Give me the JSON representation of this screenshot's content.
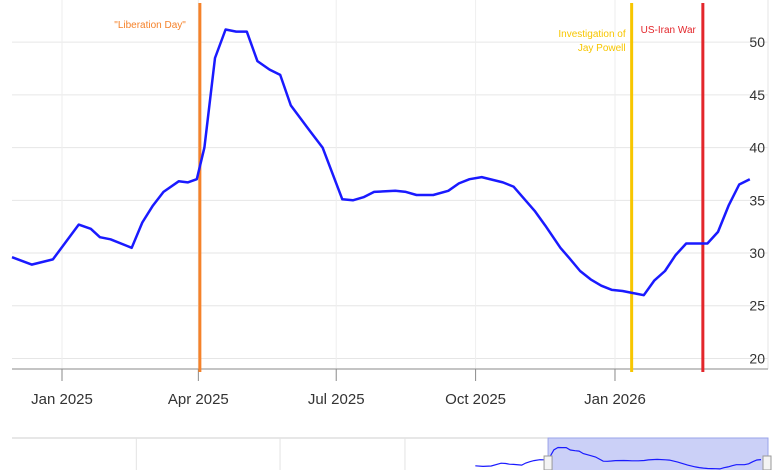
{
  "chart_data": {
    "type": "line",
    "title": "",
    "xlabel": "",
    "ylabel": "",
    "xlim": [
      "2024-11-29",
      "2026-04-12"
    ],
    "ylim": [
      19,
      54
    ],
    "y_ticks": [
      20,
      25,
      30,
      35,
      40,
      45,
      50
    ],
    "y_axis_side": "right",
    "x_ticks": [
      {
        "date": "2025-01-01",
        "label": "Jan 2025"
      },
      {
        "date": "2025-04-01",
        "label": "Apr 2025"
      },
      {
        "date": "2025-07-01",
        "label": "Jul 2025"
      },
      {
        "date": "2025-10-01",
        "label": "Oct 2025"
      },
      {
        "date": "2026-01-01",
        "label": "Jan 2026"
      }
    ],
    "grid": true,
    "series": [
      {
        "color": "#1a1aff",
        "points": [
          [
            "2024-11-29",
            29.6
          ],
          [
            "2024-12-12",
            28.9
          ],
          [
            "2024-12-26",
            29.4
          ],
          [
            "2025-01-12",
            32.7
          ],
          [
            "2025-01-20",
            32.3
          ],
          [
            "2025-01-26",
            31.5
          ],
          [
            "2025-02-02",
            31.3
          ],
          [
            "2025-02-16",
            30.5
          ],
          [
            "2025-02-23",
            32.9
          ],
          [
            "2025-03-02",
            34.5
          ],
          [
            "2025-03-09",
            35.8
          ],
          [
            "2025-03-19",
            36.8
          ],
          [
            "2025-03-25",
            36.7
          ],
          [
            "2025-03-31",
            37.0
          ],
          [
            "2025-04-05",
            40.0
          ],
          [
            "2025-04-12",
            48.5
          ],
          [
            "2025-04-19",
            51.2
          ],
          [
            "2025-04-26",
            51.0
          ],
          [
            "2025-05-03",
            51.0
          ],
          [
            "2025-05-10",
            48.2
          ],
          [
            "2025-05-18",
            47.4
          ],
          [
            "2025-05-25",
            46.9
          ],
          [
            "2025-06-01",
            44.0
          ],
          [
            "2025-06-14",
            41.5
          ],
          [
            "2025-06-22",
            40.0
          ],
          [
            "2025-07-05",
            35.1
          ],
          [
            "2025-07-12",
            35.0
          ],
          [
            "2025-07-19",
            35.3
          ],
          [
            "2025-07-26",
            35.8
          ],
          [
            "2025-08-09",
            35.9
          ],
          [
            "2025-08-16",
            35.8
          ],
          [
            "2025-08-23",
            35.5
          ],
          [
            "2025-09-03",
            35.5
          ],
          [
            "2025-09-13",
            35.9
          ],
          [
            "2025-09-20",
            36.6
          ],
          [
            "2025-09-27",
            37.0
          ],
          [
            "2025-10-05",
            37.2
          ],
          [
            "2025-10-19",
            36.7
          ],
          [
            "2025-10-26",
            36.3
          ],
          [
            "2025-11-09",
            34.0
          ],
          [
            "2025-11-16",
            32.6
          ],
          [
            "2025-11-26",
            30.5
          ],
          [
            "2025-12-02",
            29.5
          ],
          [
            "2025-12-09",
            28.3
          ],
          [
            "2025-12-16",
            27.5
          ],
          [
            "2025-12-23",
            26.9
          ],
          [
            "2025-12-30",
            26.5
          ],
          [
            "2026-01-06",
            26.4
          ],
          [
            "2026-01-13",
            26.2
          ],
          [
            "2026-01-20",
            26.0
          ],
          [
            "2026-01-27",
            27.4
          ],
          [
            "2026-02-03",
            28.3
          ],
          [
            "2026-02-10",
            29.8
          ],
          [
            "2026-02-17",
            30.9
          ],
          [
            "2026-03-03",
            30.9
          ],
          [
            "2026-03-10",
            32.0
          ],
          [
            "2026-03-17",
            34.5
          ],
          [
            "2026-03-24",
            36.5
          ],
          [
            "2026-03-31",
            37.0
          ]
        ]
      }
    ],
    "annotations": [
      {
        "label": "\"Liberation Day\"",
        "date": "2025-04-02",
        "color": "#f5822a"
      },
      {
        "label": "Investigation of Jay Powell",
        "date": "2026-01-12",
        "color": "#f7c600"
      },
      {
        "label": "US-Iran War",
        "date": "2026-02-28",
        "color": "#e3262b"
      }
    ],
    "navigator": {
      "selected_range": [
        "2025-04-02",
        "2026-04-12"
      ],
      "fill_color": "#c8cdf7"
    }
  }
}
